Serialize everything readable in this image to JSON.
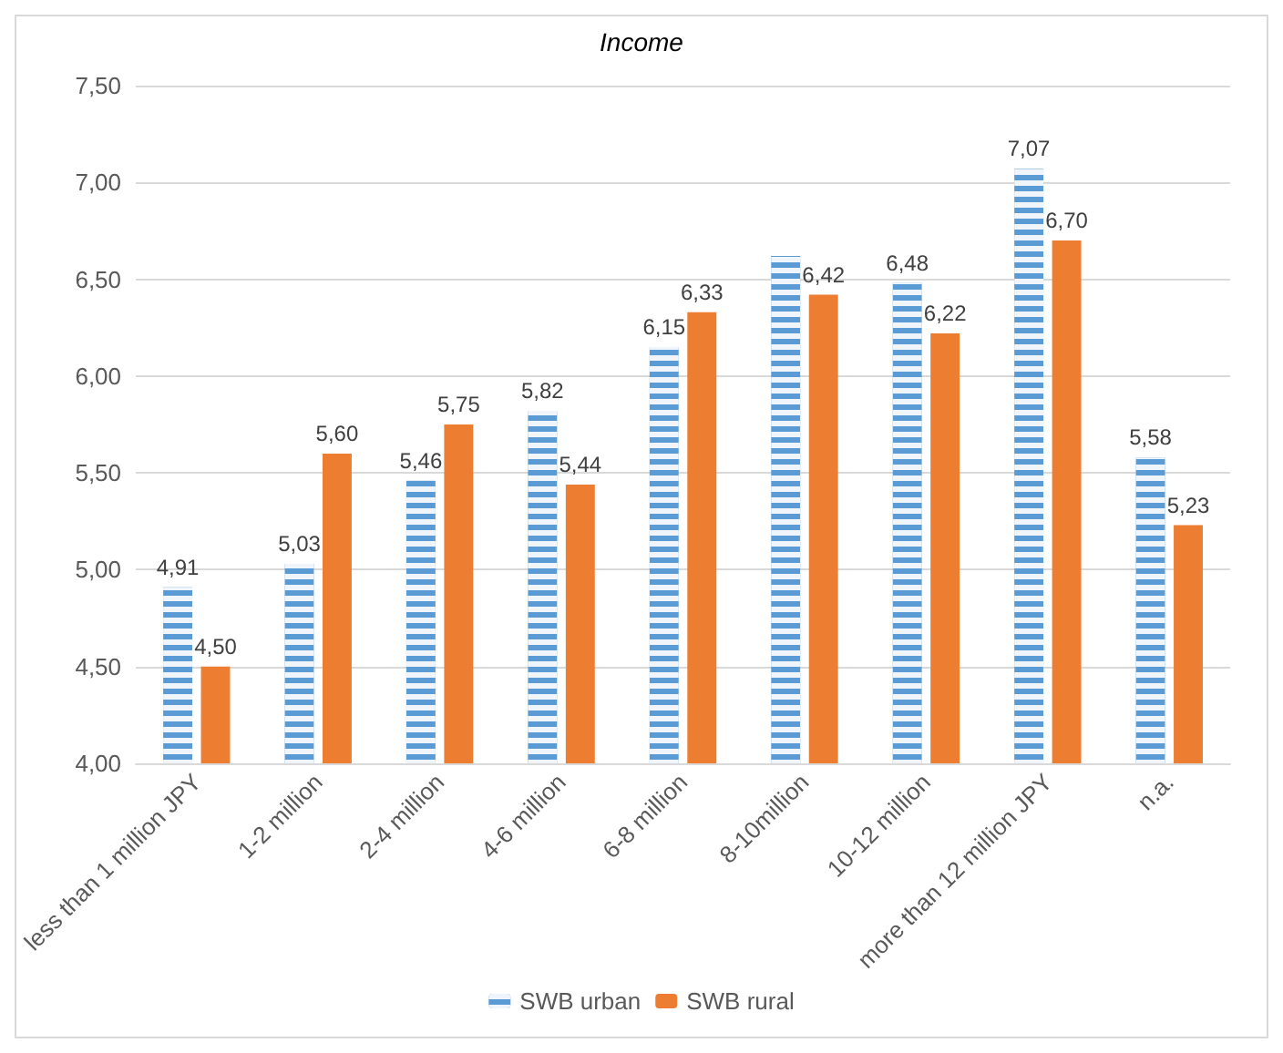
{
  "chart_data": {
    "type": "bar",
    "title": "Income",
    "categories": [
      "less than 1 million JPY",
      "1-2 million",
      "2-4 million",
      "4-6 million",
      "6-8 million",
      "8-10million",
      "10-12 million",
      "more than 12 million JPY",
      "n.a."
    ],
    "series": [
      {
        "name": "SWB urban",
        "color": "#5b9bd5",
        "values": [
          4.91,
          5.03,
          5.46,
          5.82,
          6.15,
          6.62,
          6.48,
          7.07,
          5.58
        ],
        "value_labels": [
          "4,91",
          "5,03",
          "5,46",
          "5,82",
          "6,15",
          null,
          "6,48",
          "7,07",
          "5,58"
        ]
      },
      {
        "name": "SWB rural",
        "color": "#ed7d31",
        "values": [
          4.5,
          5.6,
          5.75,
          5.44,
          6.33,
          6.42,
          6.22,
          6.7,
          5.23
        ],
        "value_labels": [
          "4,50",
          "5,60",
          "5,75",
          "5,44",
          "6,33",
          "6,42",
          "6,22",
          "6,70",
          "5,23"
        ]
      }
    ],
    "ylim": [
      4,
      7.5
    ],
    "yticks": [
      {
        "value": 4,
        "label": "4,00"
      },
      {
        "value": 4.5,
        "label": "4,50"
      },
      {
        "value": 5,
        "label": "5,00"
      },
      {
        "value": 5.5,
        "label": "5,50"
      },
      {
        "value": 6,
        "label": "6,00"
      },
      {
        "value": 6.5,
        "label": "6,50"
      },
      {
        "value": 7,
        "label": "7,00"
      },
      {
        "value": 7.5,
        "label": "7,50"
      }
    ],
    "grid": "y",
    "legend": "bottom"
  }
}
